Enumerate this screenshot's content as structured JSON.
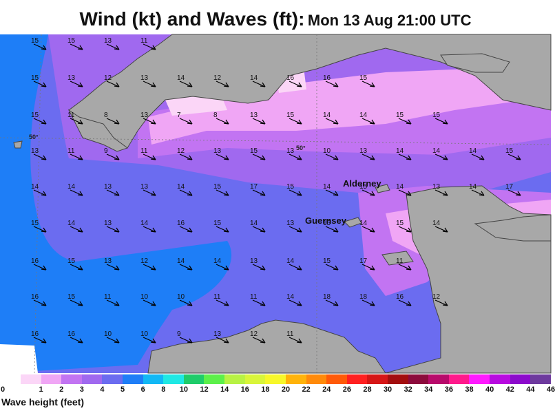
{
  "title": {
    "main": "Wind (kt) and Waves (ft):",
    "date": "Mon 13 Aug 21:00 UTC"
  },
  "map": {
    "lat_labels": [
      "50°",
      "50°"
    ],
    "places": [
      "Alderney",
      "Guernsey"
    ],
    "wind_rows": [
      [
        "15",
        "15",
        "13",
        "11"
      ],
      [
        "15",
        "13",
        "12",
        "13",
        "14",
        "12",
        "14",
        "16",
        "16",
        "15"
      ],
      [
        "15",
        "11",
        "8",
        "13",
        "7",
        "8",
        "13",
        "15",
        "14",
        "14",
        "15",
        "15"
      ],
      [
        "13",
        "11",
        "9",
        "11",
        "12",
        "13",
        "15",
        "13",
        "10",
        "13",
        "14",
        "14",
        "14",
        "15"
      ],
      [
        "14",
        "14",
        "13",
        "13",
        "14",
        "15",
        "17",
        "15",
        "14",
        "15",
        "14",
        "13",
        "14",
        "17"
      ],
      [
        "15",
        "14",
        "13",
        "14",
        "16",
        "15",
        "14",
        "13",
        "15",
        "14",
        "15",
        "14"
      ],
      [
        "16",
        "15",
        "13",
        "12",
        "14",
        "14",
        "13",
        "14",
        "15",
        "17",
        "11"
      ],
      [
        "16",
        "15",
        "11",
        "10",
        "10",
        "11",
        "11",
        "14",
        "18",
        "18",
        "16",
        "12"
      ],
      [
        "16",
        "16",
        "10",
        "10",
        "9",
        "13",
        "12",
        "11"
      ]
    ]
  },
  "legend": {
    "label": "Wave height (feet)",
    "ticks": [
      "0",
      "1",
      "2",
      "3",
      "4",
      "5",
      "6",
      "8",
      "10",
      "12",
      "14",
      "16",
      "18",
      "20",
      "22",
      "24",
      "26",
      "28",
      "30",
      "32",
      "34",
      "36",
      "38",
      "40",
      "42",
      "44",
      "46"
    ],
    "colors": [
      "#fbd6f7",
      "#f0a6f5",
      "#c274f2",
      "#a069ef",
      "#6b6cf0",
      "#1e7ef7",
      "#12b8f5",
      "#1fe8e4",
      "#1fcc6a",
      "#5cf04a",
      "#b8f244",
      "#d9f53a",
      "#f7f72a",
      "#ffb30a",
      "#ff8a0a",
      "#ff5a08",
      "#ff2020",
      "#d61616",
      "#a30e0e",
      "#8c0a3c",
      "#b80a6b",
      "#ff1a8c",
      "#ff1aff",
      "#b80ae0",
      "#8c0acc",
      "#6e3a9e"
    ]
  }
}
